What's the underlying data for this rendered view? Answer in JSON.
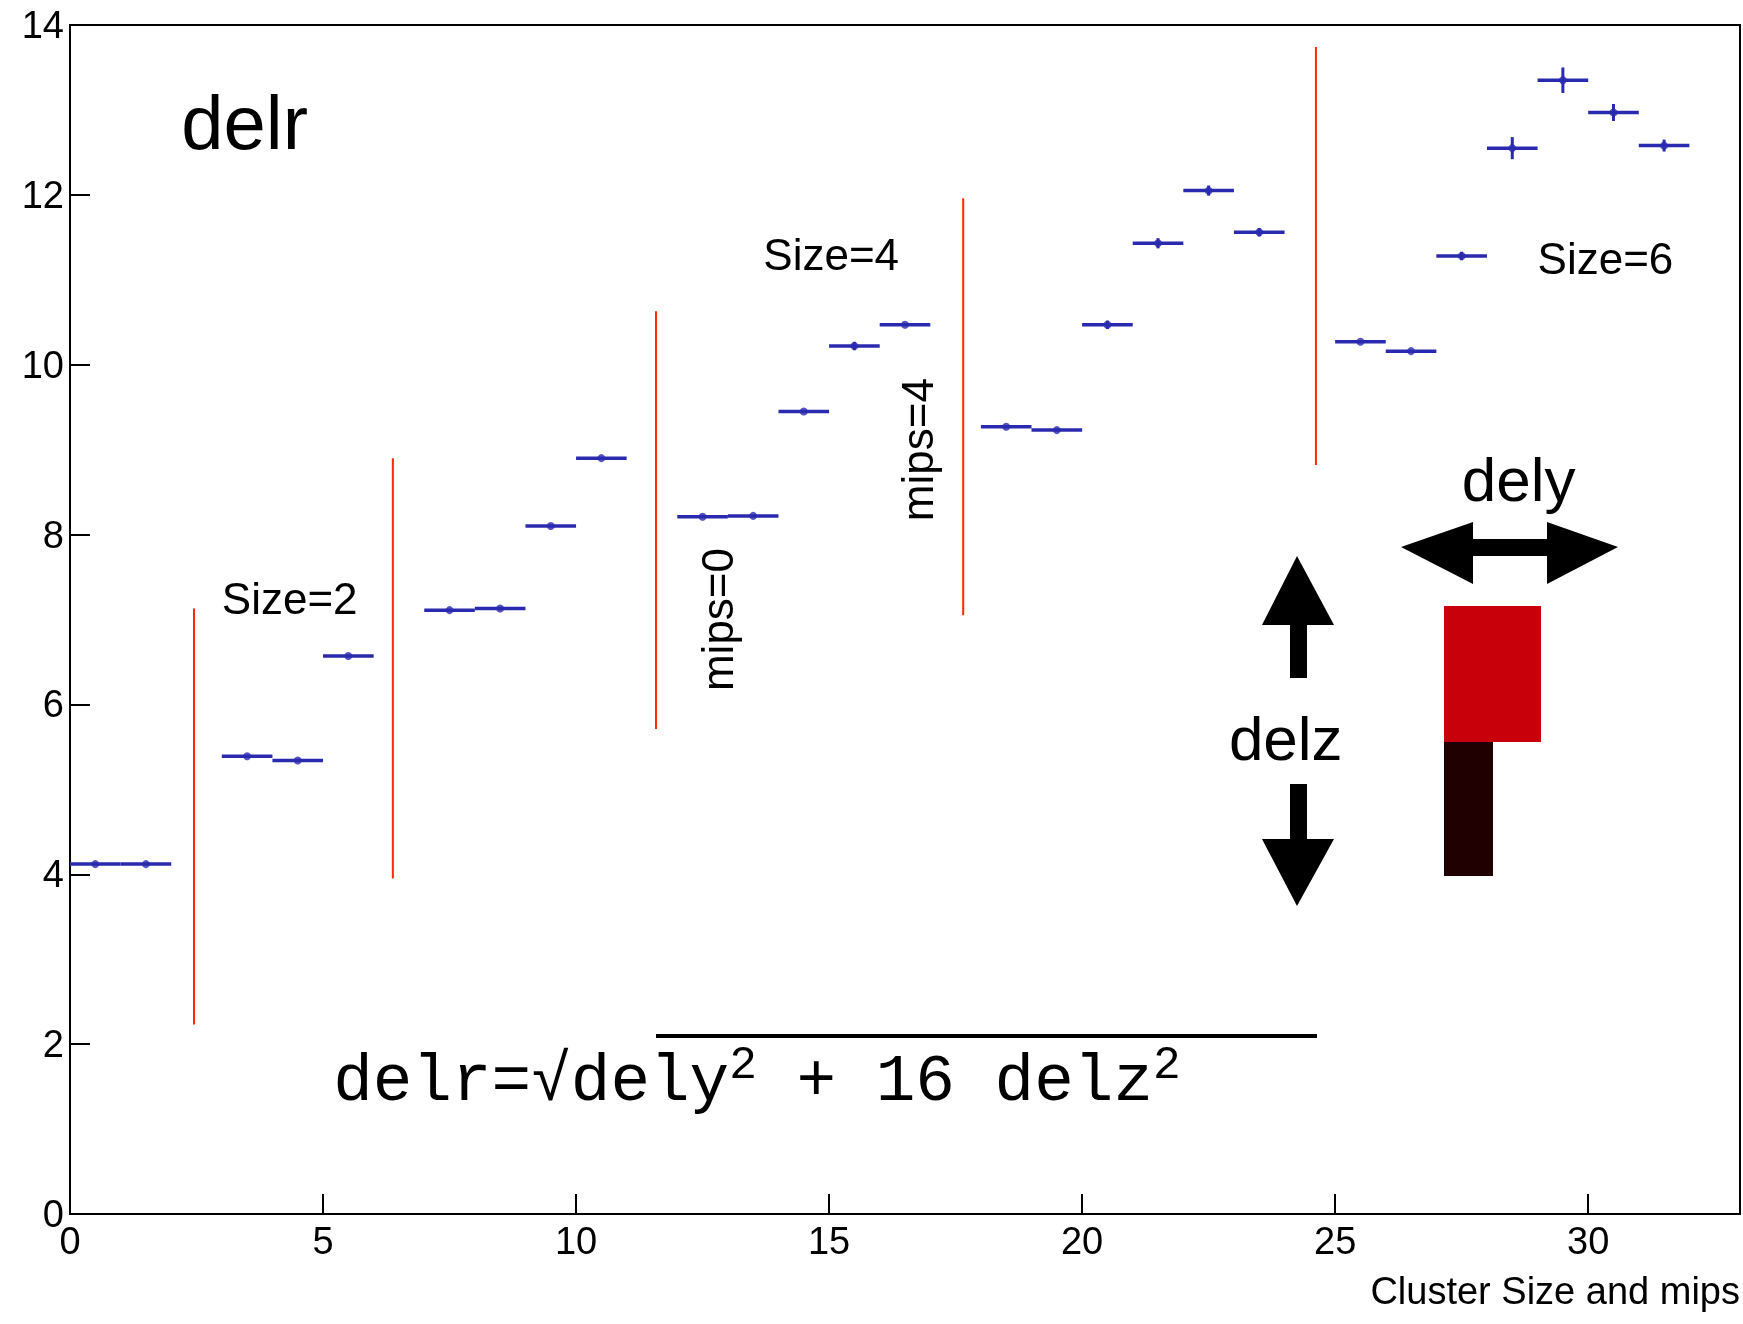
{
  "chart_data": {
    "type": "scatter",
    "title": "delr",
    "xlabel": "Cluster Size and mips",
    "xlim": [
      0,
      33
    ],
    "xticks": [
      0,
      5,
      10,
      15,
      20,
      25,
      30
    ],
    "ylim": [
      0,
      14
    ],
    "yticks": [
      0,
      2,
      4,
      6,
      8,
      10,
      12,
      14
    ],
    "grid": false,
    "annotations": [
      "Size=2",
      "Size=4",
      "Size=6",
      "mips=0",
      "mips=4",
      "dely",
      "delz",
      "delr=√dely$^{2}$ + 16 delz$^{2}$"
    ],
    "series": [
      {
        "color": "#2a2ab0",
        "marker": "circle",
        "x": [
          0.5,
          1.5,
          3.5,
          4.5,
          5.5,
          7.5,
          8.5,
          9.5,
          10.5,
          12.5,
          13.5,
          14.5,
          15.5,
          16.5,
          18.5,
          19.5,
          20.5,
          21.5,
          22.5,
          23.5,
          25.5,
          26.5,
          27.5,
          28.5,
          29.5,
          30.5,
          31.5
        ],
        "values": [
          4.12,
          4.12,
          5.39,
          5.34,
          6.57,
          7.11,
          7.13,
          8.1,
          8.9,
          8.21,
          8.22,
          9.45,
          10.22,
          10.47,
          9.27,
          9.23,
          10.47,
          11.43,
          12.05,
          11.56,
          10.27,
          10.16,
          11.28,
          12.55,
          13.35,
          12.97,
          12.58
        ],
        "errors": [
          null,
          null,
          null,
          null,
          null,
          null,
          null,
          null,
          null,
          null,
          null,
          null,
          0.05,
          null,
          null,
          null,
          0.05,
          0.06,
          0.06,
          0.05,
          null,
          null,
          0.05,
          0.13,
          0.15,
          0.1,
          0.07
        ],
        "xerrors": [
          0.5,
          0.5,
          0.5,
          0.5,
          0.5,
          0.5,
          0.5,
          0.5,
          0.5,
          0.5,
          0.5,
          0.5,
          0.5,
          0.5,
          0.5,
          0.5,
          0.5,
          0.5,
          0.5,
          0.5,
          0.5,
          0.5,
          0.5,
          0.5,
          0.5,
          0.5,
          0.5
        ]
      },
      {
        "type": "line",
        "color": "#ff2a00",
        "x": [
          2.45,
          2.45
        ],
        "values": [
          2.23,
          7.13
        ]
      },
      {
        "type": "line",
        "color": "#ff2a00",
        "x": [
          6.38,
          6.38
        ],
        "values": [
          3.95,
          8.9
        ]
      },
      {
        "type": "line",
        "color": "#ff2a00",
        "x": [
          11.58,
          11.58
        ],
        "values": [
          5.71,
          10.63
        ]
      },
      {
        "type": "line",
        "color": "#ff2a00",
        "x": [
          17.65,
          17.65
        ],
        "values": [
          7.05,
          11.96
        ]
      },
      {
        "type": "line",
        "color": "#ff2a00",
        "x": [
          24.62,
          24.62
        ],
        "values": [
          8.82,
          13.74
        ]
      }
    ]
  }
}
